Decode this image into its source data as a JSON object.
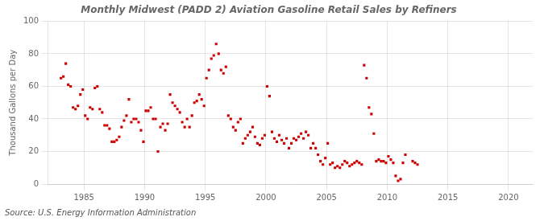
{
  "chart_data": {
    "type": "scatter",
    "title": "Monthly Midwest (PADD 2) Aviation Gasoline Retail Sales by Refiners",
    "ylabel": "Thousand Gallons per Day",
    "annotation": "Source: U.S. Energy Information Administration",
    "color": "#cc0000",
    "marker": "square",
    "grid": true,
    "xlim": [
      1982,
      2022
    ],
    "ylim": [
      0,
      100
    ],
    "xticks": [
      1985,
      1990,
      1995,
      2000,
      2005,
      2010,
      2015,
      2020
    ],
    "yticks": [
      0,
      20,
      40,
      60,
      80,
      100
    ],
    "x": [
      1983.1,
      1983.3,
      1983.5,
      1983.7,
      1983.9,
      1984.1,
      1984.3,
      1984.5,
      1984.7,
      1984.9,
      1985.1,
      1985.3,
      1985.5,
      1985.7,
      1985.9,
      1986.1,
      1986.3,
      1986.5,
      1986.7,
      1986.9,
      1987.1,
      1987.3,
      1987.5,
      1987.7,
      1987.9,
      1988.1,
      1988.3,
      1988.5,
      1988.7,
      1988.9,
      1989.1,
      1989.3,
      1989.5,
      1989.7,
      1989.9,
      1990.1,
      1990.3,
      1990.5,
      1990.7,
      1990.9,
      1991.1,
      1991.3,
      1991.5,
      1991.7,
      1991.9,
      1992.1,
      1992.3,
      1992.5,
      1992.7,
      1992.9,
      1993.1,
      1993.3,
      1993.5,
      1993.7,
      1993.9,
      1994.1,
      1994.3,
      1994.5,
      1994.7,
      1994.9,
      1995.1,
      1995.3,
      1995.5,
      1995.7,
      1995.9,
      1996.1,
      1996.3,
      1996.5,
      1996.7,
      1996.9,
      1997.1,
      1997.3,
      1997.5,
      1997.7,
      1997.9,
      1998.1,
      1998.3,
      1998.5,
      1998.7,
      1998.9,
      1999.1,
      1999.3,
      1999.5,
      1999.7,
      1999.9,
      2000.1,
      2000.3,
      2000.5,
      2000.7,
      2000.9,
      2001.1,
      2001.3,
      2001.5,
      2001.7,
      2001.9,
      2002.1,
      2002.3,
      2002.5,
      2002.7,
      2002.9,
      2003.1,
      2003.3,
      2003.5,
      2003.7,
      2003.9,
      2004.1,
      2004.3,
      2004.5,
      2004.7,
      2004.9,
      2005.1,
      2005.3,
      2005.5,
      2005.7,
      2005.9,
      2006.1,
      2006.3,
      2006.5,
      2006.7,
      2006.9,
      2007.1,
      2007.3,
      2007.5,
      2007.7,
      2007.9,
      2008.1,
      2008.3,
      2008.5,
      2008.7,
      2008.9,
      2009.1,
      2009.3,
      2009.5,
      2009.7,
      2009.9,
      2010.1,
      2010.3,
      2010.5,
      2010.7,
      2010.9,
      2011.1,
      2011.3,
      2011.5,
      2012.1,
      2012.3,
      2012.5
    ],
    "values": [
      65.0,
      66.0,
      74.0,
      61.0,
      60.0,
      47.0,
      46.0,
      48.0,
      55.0,
      58.0,
      42.0,
      40.0,
      47.0,
      46.0,
      59.0,
      60.0,
      46.0,
      44.0,
      36.0,
      36.0,
      34.0,
      26.0,
      26.0,
      27.0,
      29.0,
      35.0,
      39.0,
      42.0,
      52.0,
      38.0,
      40.0,
      40.0,
      38.0,
      33.0,
      26.0,
      45.0,
      45.0,
      47.0,
      40.0,
      40.0,
      20.0,
      35.0,
      37.0,
      33.0,
      37.0,
      55.0,
      50.0,
      48.0,
      46.0,
      44.0,
      38.0,
      35.0,
      40.0,
      35.0,
      42.0,
      50.0,
      51.0,
      55.0,
      52.0,
      48.0,
      65.0,
      70.0,
      77.0,
      79.0,
      86.0,
      80.0,
      70.0,
      68.0,
      72.0,
      42.0,
      40.0,
      35.0,
      33.0,
      38.0,
      40.0,
      25.0,
      28.0,
      30.0,
      32.0,
      35.0,
      29.0,
      25.0,
      24.0,
      28.0,
      30.0,
      60.0,
      54.0,
      32.0,
      28.0,
      26.0,
      30.0,
      27.0,
      25.0,
      28.0,
      22.0,
      25.0,
      28.0,
      27.0,
      29.0,
      31.0,
      28.0,
      32.0,
      30.0,
      22.0,
      25.0,
      22.0,
      18.0,
      14.0,
      12.0,
      16.0,
      25.0,
      12.0,
      13.0,
      10.0,
      11.0,
      10.0,
      12.0,
      14.0,
      13.0,
      11.0,
      12.0,
      13.0,
      14.0,
      13.0,
      12.0,
      73.0,
      65.0,
      47.0,
      43.0,
      31.0,
      14.0,
      15.0,
      14.0,
      14.0,
      13.0,
      17.0,
      15.0,
      13.0,
      5.0,
      2.0,
      3.0,
      13.0,
      18.0,
      14.0,
      13.0,
      12.0
    ]
  }
}
